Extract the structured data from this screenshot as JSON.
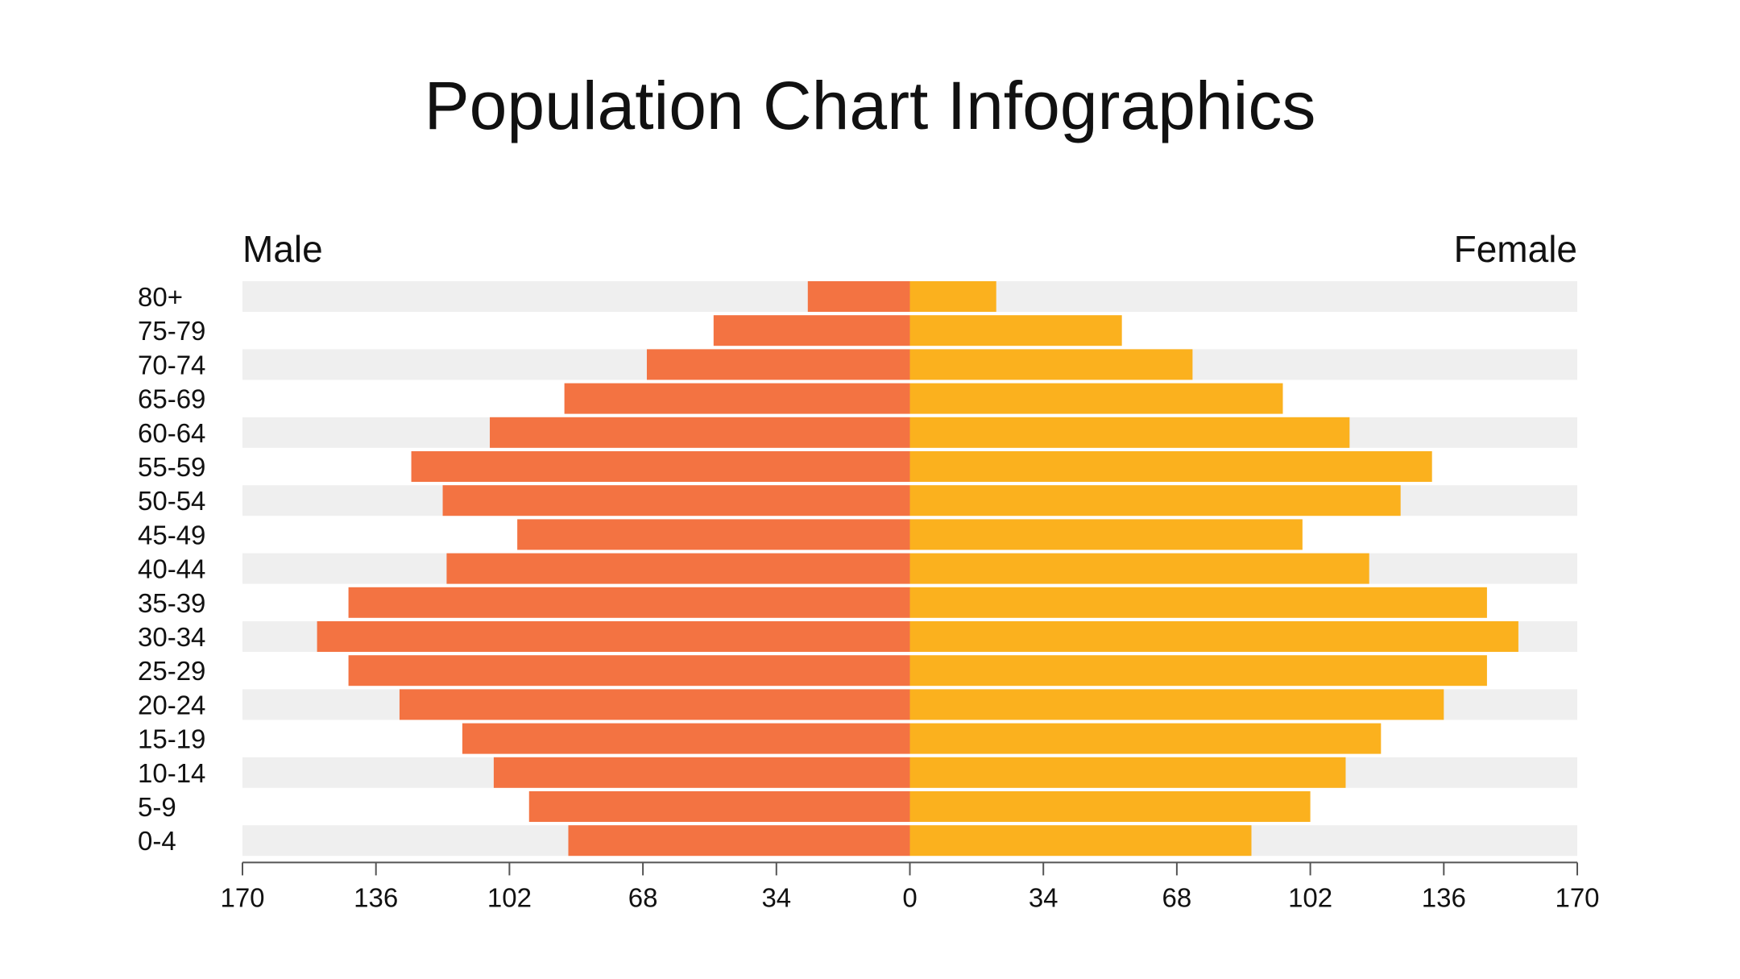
{
  "chart_data": {
    "type": "bar",
    "orientation": "horizontal-diverging",
    "title": "Population Chart Infographics",
    "left_label": "Male",
    "right_label": "Female",
    "categories": [
      "80+",
      "75-79",
      "70-74",
      "65-69",
      "60-64",
      "55-59",
      "50-54",
      "45-49",
      "40-44",
      "35-39",
      "30-34",
      "25-29",
      "20-24",
      "15-19",
      "10-14",
      "5-9",
      "0-4"
    ],
    "series": [
      {
        "name": "Male",
        "color": "#F37342",
        "values": [
          26,
          50,
          67,
          88,
          107,
          127,
          119,
          100,
          118,
          143,
          151,
          143,
          130,
          114,
          106,
          97,
          87
        ]
      },
      {
        "name": "Female",
        "color": "#FBB11E",
        "values": [
          22,
          54,
          72,
          95,
          112,
          133,
          125,
          100,
          117,
          147,
          155,
          147,
          136,
          120,
          111,
          102,
          87
        ]
      }
    ],
    "xlim": [
      -170,
      170
    ],
    "ticks": [
      "170",
      "136",
      "102",
      "68",
      "34",
      "0",
      "34",
      "68",
      "102",
      "136",
      "170"
    ],
    "row_band_color": "#EFEFEF",
    "axis_color": "#555555",
    "grid": false,
    "legend": "none"
  }
}
